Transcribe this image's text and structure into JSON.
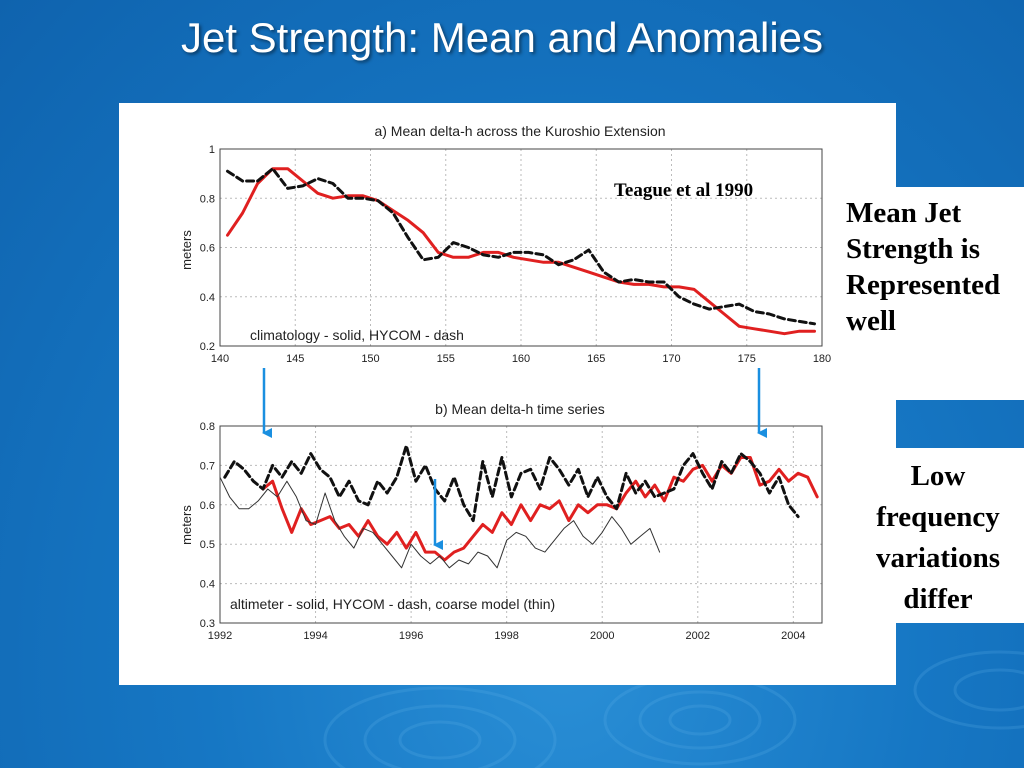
{
  "slide": {
    "title": "Jet Strength: Mean and Anomalies",
    "callout_mean": [
      "Mean Jet",
      "Strength is",
      "Represented",
      "well"
    ],
    "callout_low": [
      "Low",
      "frequency",
      "variations",
      "differ"
    ],
    "arrow_color": "#1a8fe0",
    "background_color": "#1670bd"
  },
  "chart_data": [
    {
      "type": "line",
      "title": "a) Mean delta-h across the Kuroshio Extension",
      "xlabel": "",
      "ylabel": "meters",
      "xlim": [
        140,
        180
      ],
      "ylim": [
        0.2,
        1
      ],
      "xticks": [
        140,
        145,
        150,
        155,
        160,
        165,
        170,
        175,
        180
      ],
      "yticks": [
        0.2,
        0.4,
        0.6,
        0.8,
        1
      ],
      "annotations": [
        "Teague et al 1990",
        "climatology - solid, HYCOM - dash"
      ],
      "series": [
        {
          "style": "solid",
          "color": "#e02020",
          "x": [
            140.5,
            141.5,
            142.5,
            143.5,
            144.5,
            145.5,
            146.5,
            147.5,
            148.5,
            149.5,
            150.5,
            151.5,
            152.5,
            153.5,
            154.5,
            155.5,
            156.5,
            157.5,
            158.5,
            159.5,
            160.5,
            161.5,
            162.5,
            163.5,
            164.5,
            165.5,
            166.5,
            167.5,
            168.5,
            169.5,
            170.5,
            171.5,
            172.5,
            173.5,
            174.5,
            175.5,
            176.5,
            177.5,
            178.5,
            179.5
          ],
          "y": [
            0.65,
            0.74,
            0.86,
            0.92,
            0.92,
            0.87,
            0.82,
            0.8,
            0.81,
            0.81,
            0.79,
            0.75,
            0.71,
            0.66,
            0.58,
            0.56,
            0.56,
            0.58,
            0.58,
            0.56,
            0.55,
            0.54,
            0.54,
            0.52,
            0.5,
            0.48,
            0.46,
            0.45,
            0.45,
            0.44,
            0.44,
            0.43,
            0.38,
            0.33,
            0.28,
            0.27,
            0.26,
            0.25,
            0.26,
            0.26
          ]
        },
        {
          "style": "dash",
          "color": "#111111",
          "x": [
            140.5,
            141.5,
            142.5,
            143.5,
            144.5,
            145.5,
            146.5,
            147.5,
            148.5,
            149.5,
            150.5,
            151.5,
            152.5,
            153.5,
            154.5,
            155.5,
            156.5,
            157.5,
            158.5,
            159.5,
            160.5,
            161.5,
            162.5,
            163.5,
            164.5,
            165.5,
            166.5,
            167.5,
            168.5,
            169.5,
            170.5,
            171.5,
            172.5,
            173.5,
            174.5,
            175.5,
            176.5,
            177.5,
            178.5,
            179.5
          ],
          "y": [
            0.91,
            0.87,
            0.87,
            0.92,
            0.84,
            0.85,
            0.88,
            0.86,
            0.8,
            0.8,
            0.79,
            0.74,
            0.64,
            0.55,
            0.56,
            0.62,
            0.6,
            0.57,
            0.56,
            0.58,
            0.58,
            0.57,
            0.53,
            0.55,
            0.59,
            0.5,
            0.46,
            0.47,
            0.46,
            0.46,
            0.4,
            0.37,
            0.35,
            0.36,
            0.37,
            0.34,
            0.33,
            0.31,
            0.3,
            0.29
          ]
        }
      ]
    },
    {
      "type": "line",
      "title": "b) Mean delta-h time series",
      "xlabel": "",
      "ylabel": "meters",
      "xlim": [
        1992,
        2004.6
      ],
      "ylim": [
        0.3,
        0.8
      ],
      "xticks": [
        1992,
        1994,
        1996,
        1998,
        2000,
        2002,
        2004
      ],
      "yticks": [
        0.3,
        0.4,
        0.5,
        0.6,
        0.7,
        0.8
      ],
      "annotations": [
        "altimeter - solid, HYCOM - dash, coarse model (thin)"
      ],
      "series": [
        {
          "style": "solid",
          "color": "#e02020",
          "x": [
            1992.9,
            1993.1,
            1993.3,
            1993.5,
            1993.7,
            1993.9,
            1994.1,
            1994.3,
            1994.5,
            1994.7,
            1994.9,
            1995.1,
            1995.3,
            1995.5,
            1995.7,
            1995.9,
            1996.1,
            1996.3,
            1996.5,
            1996.7,
            1996.9,
            1997.1,
            1997.3,
            1997.5,
            1997.7,
            1997.9,
            1998.1,
            1998.3,
            1998.5,
            1998.7,
            1998.9,
            1999.1,
            1999.3,
            1999.5,
            1999.7,
            1999.9,
            2000.1,
            2000.3,
            2000.5,
            2000.7,
            2000.9,
            2001.1,
            2001.3,
            2001.5,
            2001.7,
            2001.9,
            2002.1,
            2002.3,
            2002.5,
            2002.7,
            2002.9,
            2003.1,
            2003.3,
            2003.5,
            2003.7,
            2003.9,
            2004.1,
            2004.3,
            2004.5
          ],
          "y": [
            0.64,
            0.66,
            0.59,
            0.53,
            0.59,
            0.55,
            0.56,
            0.57,
            0.54,
            0.55,
            0.52,
            0.56,
            0.52,
            0.5,
            0.53,
            0.49,
            0.53,
            0.48,
            0.48,
            0.46,
            0.48,
            0.49,
            0.52,
            0.55,
            0.53,
            0.58,
            0.55,
            0.6,
            0.56,
            0.6,
            0.59,
            0.61,
            0.56,
            0.6,
            0.58,
            0.6,
            0.6,
            0.59,
            0.63,
            0.66,
            0.62,
            0.65,
            0.61,
            0.67,
            0.66,
            0.69,
            0.7,
            0.66,
            0.7,
            0.68,
            0.72,
            0.72,
            0.65,
            0.66,
            0.69,
            0.66,
            0.68,
            0.67,
            0.62
          ]
        },
        {
          "style": "dash",
          "color": "#111111",
          "x": [
            1992.1,
            1992.3,
            1992.5,
            1992.7,
            1992.9,
            1993.1,
            1993.3,
            1993.5,
            1993.7,
            1993.9,
            1994.1,
            1994.3,
            1994.5,
            1994.7,
            1994.9,
            1995.1,
            1995.3,
            1995.5,
            1995.7,
            1995.9,
            1996.1,
            1996.3,
            1996.5,
            1996.7,
            1996.9,
            1997.1,
            1997.3,
            1997.5,
            1997.7,
            1997.9,
            1998.1,
            1998.3,
            1998.5,
            1998.7,
            1998.9,
            1999.1,
            1999.3,
            1999.5,
            1999.7,
            1999.9,
            2000.1,
            2000.3,
            2000.5,
            2000.7,
            2000.9,
            2001.1,
            2001.3,
            2001.5,
            2001.7,
            2001.9,
            2002.1,
            2002.3,
            2002.5,
            2002.7,
            2002.9,
            2003.1,
            2003.3,
            2003.5,
            2003.7,
            2003.9,
            2004.1
          ],
          "y": [
            0.67,
            0.71,
            0.69,
            0.66,
            0.64,
            0.7,
            0.67,
            0.71,
            0.68,
            0.73,
            0.69,
            0.67,
            0.62,
            0.66,
            0.61,
            0.6,
            0.66,
            0.63,
            0.67,
            0.75,
            0.66,
            0.7,
            0.64,
            0.61,
            0.67,
            0.6,
            0.56,
            0.71,
            0.62,
            0.72,
            0.62,
            0.68,
            0.69,
            0.64,
            0.72,
            0.69,
            0.65,
            0.69,
            0.62,
            0.67,
            0.62,
            0.59,
            0.68,
            0.63,
            0.66,
            0.62,
            0.63,
            0.64,
            0.7,
            0.73,
            0.68,
            0.64,
            0.71,
            0.68,
            0.73,
            0.71,
            0.68,
            0.63,
            0.67,
            0.6,
            0.57
          ]
        },
        {
          "style": "thin",
          "color": "#333333",
          "x": [
            1992.0,
            1992.2,
            1992.4,
            1992.6,
            1992.8,
            1993.0,
            1993.2,
            1993.4,
            1993.6,
            1993.8,
            1994.0,
            1994.2,
            1994.4,
            1994.6,
            1994.8,
            1995.0,
            1995.2,
            1995.4,
            1995.6,
            1995.8,
            1996.0,
            1996.2,
            1996.4,
            1996.6,
            1996.8,
            1997.0,
            1997.2,
            1997.4,
            1997.6,
            1997.8,
            1998.0,
            1998.2,
            1998.4,
            1998.6,
            1998.8,
            1999.0,
            1999.2,
            1999.4,
            1999.6,
            1999.8,
            2000.0,
            2000.2,
            2000.4,
            2000.6,
            2000.8,
            2001.0,
            2001.2
          ],
          "y": [
            0.67,
            0.62,
            0.59,
            0.59,
            0.61,
            0.64,
            0.62,
            0.66,
            0.62,
            0.56,
            0.55,
            0.63,
            0.56,
            0.52,
            0.49,
            0.54,
            0.53,
            0.5,
            0.47,
            0.44,
            0.5,
            0.47,
            0.45,
            0.47,
            0.44,
            0.46,
            0.45,
            0.48,
            0.47,
            0.44,
            0.51,
            0.53,
            0.52,
            0.49,
            0.48,
            0.51,
            0.54,
            0.56,
            0.52,
            0.5,
            0.53,
            0.57,
            0.54,
            0.5,
            0.52,
            0.54,
            0.48
          ]
        }
      ]
    }
  ]
}
